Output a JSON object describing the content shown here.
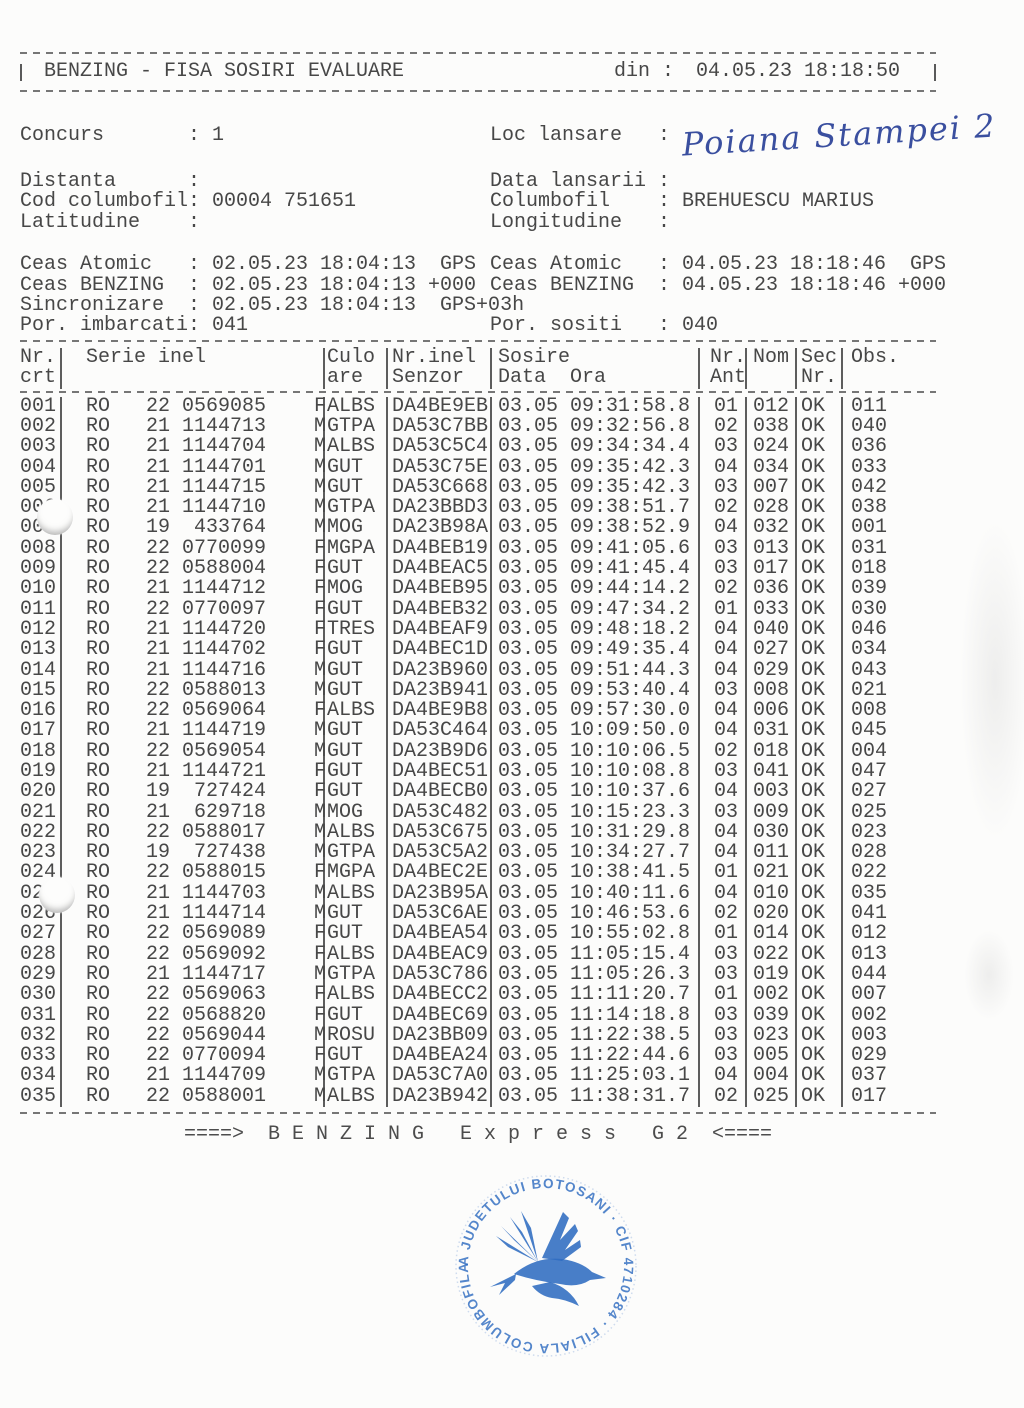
{
  "document": {
    "header": {
      "title": "BENZING - FISA SOSIRI EVALUARE",
      "din_label": "din :",
      "din_value": "04.05.23 18:18:50"
    },
    "info": {
      "concurs_label": "Concurs",
      "concurs_value": "1",
      "loc_label": "Loc lansare",
      "loc_handwritten": "Poiana Stampei 2",
      "distanta_label": "Distanta",
      "distanta_value": "",
      "data_lansarii_label": "Data lansarii",
      "data_lansarii_value": "",
      "cod_label": "Cod columbofil",
      "cod_value": "00004 751651",
      "columbofil_label": "Columbofil",
      "columbofil_value": "BREHUESCU MARIUS",
      "latitudine_label": "Latitudine",
      "latitudine_value": "",
      "longitudine_label": "Longitudine",
      "longitudine_value": ""
    },
    "clock": {
      "rows": [
        {
          "l_label": "Ceas Atomic",
          "l_value": "02.05.23 18:04:13  GPS",
          "r_label": "Ceas Atomic",
          "r_value": "04.05.23 18:18:46  GPS"
        },
        {
          "l_label": "Ceas BENZING",
          "l_value": "02.05.23 18:04:13 +000",
          "r_label": "Ceas BENZING",
          "r_value": "04.05.23 18:18:46 +000"
        },
        {
          "l_label": "Sincronizare",
          "l_value": "02.05.23 18:04:13  GPS+03h",
          "r_label": "",
          "r_value": ""
        },
        {
          "l_label": "Por. imbarcati",
          "l_value": "041",
          "r_label": "Por. sositi",
          "r_value": "040"
        }
      ]
    },
    "table": {
      "headers": {
        "nr1": "Nr.",
        "nr2": "crt",
        "serie1": "Serie inel",
        "serie2": "",
        "culoare1": "Culo",
        "culoare2": "are",
        "senzor1": "Nr.inel",
        "senzor2": "Senzor",
        "sosire1": "Sosire",
        "sosire2": "Data  Ora",
        "ant1": "Nr.",
        "ant2": "Ant",
        "nom1": "Nom",
        "nom2": "",
        "sec1": "Sec",
        "sec2": "Nr.",
        "obs1": "Obs.",
        "obs2": ""
      },
      "rows": [
        {
          "nr": "001",
          "country": "RO",
          "year": "22",
          "ring": "0569085",
          "sex": "F",
          "culoare": "ALBS",
          "senzor": "DA4BE9EB",
          "data": "03.05",
          "ora": "09:31:58.8",
          "ant": "01",
          "nom": "012",
          "sec": "OK",
          "obs": "011"
        },
        {
          "nr": "002",
          "country": "RO",
          "year": "21",
          "ring": "1144713",
          "sex": "M",
          "culoare": "GTPA",
          "senzor": "DA53C7BB",
          "data": "03.05",
          "ora": "09:32:56.8",
          "ant": "02",
          "nom": "038",
          "sec": "OK",
          "obs": "040"
        },
        {
          "nr": "003",
          "country": "RO",
          "year": "21",
          "ring": "1144704",
          "sex": "M",
          "culoare": "ALBS",
          "senzor": "DA53C5C4",
          "data": "03.05",
          "ora": "09:34:34.4",
          "ant": "03",
          "nom": "024",
          "sec": "OK",
          "obs": "036"
        },
        {
          "nr": "004",
          "country": "RO",
          "year": "21",
          "ring": "1144701",
          "sex": "M",
          "culoare": "GUT",
          "senzor": "DA53C75E",
          "data": "03.05",
          "ora": "09:35:42.3",
          "ant": "04",
          "nom": "034",
          "sec": "OK",
          "obs": "033"
        },
        {
          "nr": "005",
          "country": "RO",
          "year": "21",
          "ring": "1144715",
          "sex": "M",
          "culoare": "GUT",
          "senzor": "DA53C668",
          "data": "03.05",
          "ora": "09:35:42.3",
          "ant": "03",
          "nom": "007",
          "sec": "OK",
          "obs": "042"
        },
        {
          "nr": "006",
          "country": "RO",
          "year": "21",
          "ring": "1144710",
          "sex": "M",
          "culoare": "GTPA",
          "senzor": "DA23BBD3",
          "data": "03.05",
          "ora": "09:38:51.7",
          "ant": "02",
          "nom": "028",
          "sec": "OK",
          "obs": "038"
        },
        {
          "nr": "007",
          "country": "RO",
          "year": "19",
          "ring": "433764",
          "sex": "M",
          "culoare": "MOG",
          "senzor": "DA23B98A",
          "data": "03.05",
          "ora": "09:38:52.9",
          "ant": "04",
          "nom": "032",
          "sec": "OK",
          "obs": "001"
        },
        {
          "nr": "008",
          "country": "RO",
          "year": "22",
          "ring": "0770099",
          "sex": "F",
          "culoare": "MGPA",
          "senzor": "DA4BEB19",
          "data": "03.05",
          "ora": "09:41:05.6",
          "ant": "03",
          "nom": "013",
          "sec": "OK",
          "obs": "031"
        },
        {
          "nr": "009",
          "country": "RO",
          "year": "22",
          "ring": "0588004",
          "sex": "F",
          "culoare": "GUT",
          "senzor": "DA4BEAC5",
          "data": "03.05",
          "ora": "09:41:45.4",
          "ant": "03",
          "nom": "017",
          "sec": "OK",
          "obs": "018"
        },
        {
          "nr": "010",
          "country": "RO",
          "year": "21",
          "ring": "1144712",
          "sex": "F",
          "culoare": "MOG",
          "senzor": "DA4BEB95",
          "data": "03.05",
          "ora": "09:44:14.2",
          "ant": "02",
          "nom": "036",
          "sec": "OK",
          "obs": "039"
        },
        {
          "nr": "011",
          "country": "RO",
          "year": "22",
          "ring": "0770097",
          "sex": "F",
          "culoare": "GUT",
          "senzor": "DA4BEB32",
          "data": "03.05",
          "ora": "09:47:34.2",
          "ant": "01",
          "nom": "033",
          "sec": "OK",
          "obs": "030"
        },
        {
          "nr": "012",
          "country": "RO",
          "year": "21",
          "ring": "1144720",
          "sex": "F",
          "culoare": "TRES",
          "senzor": "DA4BEAF9",
          "data": "03.05",
          "ora": "09:48:18.2",
          "ant": "04",
          "nom": "040",
          "sec": "OK",
          "obs": "046"
        },
        {
          "nr": "013",
          "country": "RO",
          "year": "21",
          "ring": "1144702",
          "sex": "F",
          "culoare": "GUT",
          "senzor": "DA4BEC1D",
          "data": "03.05",
          "ora": "09:49:35.4",
          "ant": "04",
          "nom": "027",
          "sec": "OK",
          "obs": "034"
        },
        {
          "nr": "014",
          "country": "RO",
          "year": "21",
          "ring": "1144716",
          "sex": "M",
          "culoare": "GUT",
          "senzor": "DA23B960",
          "data": "03.05",
          "ora": "09:51:44.3",
          "ant": "04",
          "nom": "029",
          "sec": "OK",
          "obs": "043"
        },
        {
          "nr": "015",
          "country": "RO",
          "year": "22",
          "ring": "0588013",
          "sex": "M",
          "culoare": "GUT",
          "senzor": "DA23B941",
          "data": "03.05",
          "ora": "09:53:40.4",
          "ant": "03",
          "nom": "008",
          "sec": "OK",
          "obs": "021"
        },
        {
          "nr": "016",
          "country": "RO",
          "year": "22",
          "ring": "0569064",
          "sex": "F",
          "culoare": "ALBS",
          "senzor": "DA4BE9B8",
          "data": "03.05",
          "ora": "09:57:30.0",
          "ant": "04",
          "nom": "006",
          "sec": "OK",
          "obs": "008"
        },
        {
          "nr": "017",
          "country": "RO",
          "year": "21",
          "ring": "1144719",
          "sex": "M",
          "culoare": "GUT",
          "senzor": "DA53C464",
          "data": "03.05",
          "ora": "10:09:50.0",
          "ant": "04",
          "nom": "031",
          "sec": "OK",
          "obs": "045"
        },
        {
          "nr": "018",
          "country": "RO",
          "year": "22",
          "ring": "0569054",
          "sex": "M",
          "culoare": "GUT",
          "senzor": "DA23B9D6",
          "data": "03.05",
          "ora": "10:10:06.5",
          "ant": "02",
          "nom": "018",
          "sec": "OK",
          "obs": "004"
        },
        {
          "nr": "019",
          "country": "RO",
          "year": "21",
          "ring": "1144721",
          "sex": "F",
          "culoare": "GUT",
          "senzor": "DA4BEC51",
          "data": "03.05",
          "ora": "10:10:08.8",
          "ant": "03",
          "nom": "041",
          "sec": "OK",
          "obs": "047"
        },
        {
          "nr": "020",
          "country": "RO",
          "year": "19",
          "ring": "727424",
          "sex": "F",
          "culoare": "GUT",
          "senzor": "DA4BECB0",
          "data": "03.05",
          "ora": "10:10:37.6",
          "ant": "04",
          "nom": "003",
          "sec": "OK",
          "obs": "027"
        },
        {
          "nr": "021",
          "country": "RO",
          "year": "21",
          "ring": "629718",
          "sex": "M",
          "culoare": "MOG",
          "senzor": "DA53C482",
          "data": "03.05",
          "ora": "10:15:23.3",
          "ant": "03",
          "nom": "009",
          "sec": "OK",
          "obs": "025"
        },
        {
          "nr": "022",
          "country": "RO",
          "year": "22",
          "ring": "0588017",
          "sex": "M",
          "culoare": "ALBS",
          "senzor": "DA53C675",
          "data": "03.05",
          "ora": "10:31:29.8",
          "ant": "04",
          "nom": "030",
          "sec": "OK",
          "obs": "023"
        },
        {
          "nr": "023",
          "country": "RO",
          "year": "19",
          "ring": "727438",
          "sex": "M",
          "culoare": "GTPA",
          "senzor": "DA53C5A2",
          "data": "03.05",
          "ora": "10:34:27.7",
          "ant": "04",
          "nom": "011",
          "sec": "OK",
          "obs": "028"
        },
        {
          "nr": "024",
          "country": "RO",
          "year": "22",
          "ring": "0588015",
          "sex": "F",
          "culoare": "MGPA",
          "senzor": "DA4BEC2E",
          "data": "03.05",
          "ora": "10:38:41.5",
          "ant": "01",
          "nom": "021",
          "sec": "OK",
          "obs": "022"
        },
        {
          "nr": "025",
          "country": "RO",
          "year": "21",
          "ring": "1144703",
          "sex": "M",
          "culoare": "ALBS",
          "senzor": "DA23B95A",
          "data": "03.05",
          "ora": "10:40:11.6",
          "ant": "04",
          "nom": "010",
          "sec": "OK",
          "obs": "035"
        },
        {
          "nr": "026",
          "country": "RO",
          "year": "21",
          "ring": "1144714",
          "sex": "M",
          "culoare": "GUT",
          "senzor": "DA53C6AE",
          "data": "03.05",
          "ora": "10:46:53.6",
          "ant": "02",
          "nom": "020",
          "sec": "OK",
          "obs": "041"
        },
        {
          "nr": "027",
          "country": "RO",
          "year": "22",
          "ring": "0569089",
          "sex": "F",
          "culoare": "GUT",
          "senzor": "DA4BEA54",
          "data": "03.05",
          "ora": "10:55:02.8",
          "ant": "01",
          "nom": "014",
          "sec": "OK",
          "obs": "012"
        },
        {
          "nr": "028",
          "country": "RO",
          "year": "22",
          "ring": "0569092",
          "sex": "F",
          "culoare": "ALBS",
          "senzor": "DA4BEAC9",
          "data": "03.05",
          "ora": "11:05:15.4",
          "ant": "03",
          "nom": "022",
          "sec": "OK",
          "obs": "013"
        },
        {
          "nr": "029",
          "country": "RO",
          "year": "21",
          "ring": "1144717",
          "sex": "M",
          "culoare": "GTPA",
          "senzor": "DA53C786",
          "data": "03.05",
          "ora": "11:05:26.3",
          "ant": "03",
          "nom": "019",
          "sec": "OK",
          "obs": "044"
        },
        {
          "nr": "030",
          "country": "RO",
          "year": "22",
          "ring": "0569063",
          "sex": "F",
          "culoare": "ALBS",
          "senzor": "DA4BECC2",
          "data": "03.05",
          "ora": "11:11:20.7",
          "ant": "01",
          "nom": "002",
          "sec": "OK",
          "obs": "007"
        },
        {
          "nr": "031",
          "country": "RO",
          "year": "22",
          "ring": "0568820",
          "sex": "F",
          "culoare": "GUT",
          "senzor": "DA4BEC69",
          "data": "03.05",
          "ora": "11:14:18.8",
          "ant": "03",
          "nom": "039",
          "sec": "OK",
          "obs": "002"
        },
        {
          "nr": "032",
          "country": "RO",
          "year": "22",
          "ring": "0569044",
          "sex": "M",
          "culoare": "ROSU",
          "senzor": "DA23BB09",
          "data": "03.05",
          "ora": "11:22:38.5",
          "ant": "03",
          "nom": "023",
          "sec": "OK",
          "obs": "003"
        },
        {
          "nr": "033",
          "country": "RO",
          "year": "22",
          "ring": "0770094",
          "sex": "F",
          "culoare": "GUT",
          "senzor": "DA4BEA24",
          "data": "03.05",
          "ora": "11:22:44.6",
          "ant": "03",
          "nom": "005",
          "sec": "OK",
          "obs": "029"
        },
        {
          "nr": "034",
          "country": "RO",
          "year": "21",
          "ring": "1144709",
          "sex": "M",
          "culoare": "GTPA",
          "senzor": "DA53C7A0",
          "data": "03.05",
          "ora": "11:25:03.1",
          "ant": "04",
          "nom": "004",
          "sec": "OK",
          "obs": "037"
        },
        {
          "nr": "035",
          "country": "RO",
          "year": "22",
          "ring": "0588001",
          "sex": "M",
          "culoare": "ALBS",
          "senzor": "DA23B942",
          "data": "03.05",
          "ora": "11:38:31.7",
          "ant": "02",
          "nom": "025",
          "sec": "OK",
          "obs": "017"
        }
      ]
    },
    "footer": {
      "banner": "====>  B E N Z I N G   E x p r e s s   G 2  <===="
    },
    "stamp": {
      "ring_text": "A JUDETULUI BOTOSANI · CIF 4710284 · FILIALA COLUMBOFILA"
    },
    "colors": {
      "ink": "#474747",
      "stamp_blue": "#2e6bbf",
      "pen_blue": "#3a4f9f",
      "paper": "#fcfcfb"
    }
  }
}
